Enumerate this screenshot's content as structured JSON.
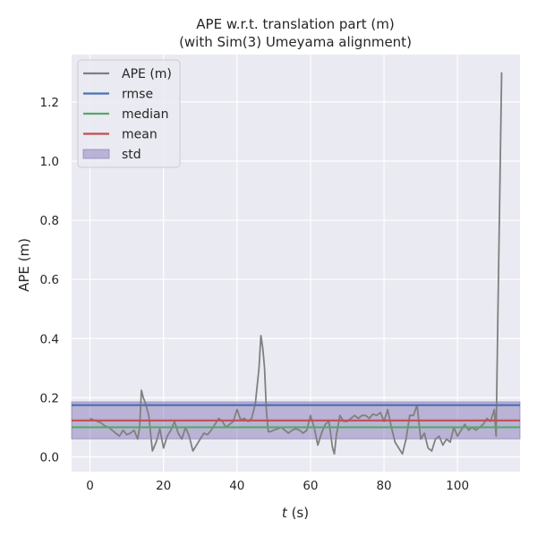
{
  "chart_data": {
    "type": "line",
    "title_line1": "APE w.r.t. translation part (m)",
    "title_line2": "(with Sim(3) Umeyama alignment)",
    "xlabel_var": "t",
    "xlabel_unit": " (s)",
    "ylabel": "APE (m)",
    "xlim": [
      -5,
      117
    ],
    "ylim": [
      -0.05,
      1.36
    ],
    "xticks": [
      0,
      20,
      40,
      60,
      80,
      100
    ],
    "yticks": [
      0.0,
      0.2,
      0.4,
      0.6,
      0.8,
      1.0,
      1.2
    ],
    "ytick_labels": [
      "0.0",
      "0.2",
      "0.4",
      "0.6",
      "0.8",
      "1.0",
      "1.2"
    ],
    "grid": true,
    "legend_position": "upper-left",
    "colors": {
      "background": "#eaeaf2",
      "grid": "#ffffff",
      "ape": "#808080",
      "rmse": "#4c72b0",
      "median": "#55a868",
      "mean": "#c44e52",
      "std": "#8172b3"
    },
    "stats": {
      "rmse": 0.175,
      "median": 0.1,
      "mean": 0.123,
      "std_lower": 0.061,
      "std_upper": 0.186
    },
    "legend": [
      {
        "label": "APE (m)",
        "kind": "line",
        "color_key": "ape"
      },
      {
        "label": "rmse",
        "kind": "line",
        "color_key": "rmse"
      },
      {
        "label": "median",
        "kind": "line",
        "color_key": "median"
      },
      {
        "label": "mean",
        "kind": "line",
        "color_key": "mean"
      },
      {
        "label": "std",
        "kind": "patch",
        "color_key": "std"
      }
    ],
    "series": [
      {
        "name": "APE (m)",
        "x": [
          0,
          1,
          2,
          3,
          4,
          5,
          6,
          7,
          8,
          9,
          10,
          11,
          12,
          13,
          13.5,
          14,
          14.5,
          15,
          16,
          17,
          18,
          19,
          20,
          21,
          22,
          23,
          24,
          25,
          26,
          27,
          28,
          29,
          30,
          31,
          32,
          33,
          34,
          35,
          36,
          37,
          38,
          39,
          40,
          41,
          42,
          43,
          44,
          45,
          46,
          46.5,
          47,
          47.5,
          48,
          48.5,
          49,
          50,
          51,
          52,
          53,
          54,
          55,
          56,
          57,
          58,
          59,
          60,
          61,
          62,
          63,
          64,
          65,
          66,
          66.5,
          67,
          68,
          69,
          70,
          71,
          72,
          73,
          74,
          75,
          76,
          77,
          78,
          79,
          80,
          81,
          82,
          83,
          84,
          85,
          86,
          87,
          88,
          89,
          90,
          91,
          92,
          93,
          94,
          95,
          96,
          97,
          98,
          99,
          100,
          101,
          102,
          103,
          104,
          105,
          106,
          107,
          108,
          109,
          110,
          110.5,
          111,
          112
        ],
        "y": [
          0.13,
          0.125,
          0.12,
          0.115,
          0.105,
          0.1,
          0.09,
          0.08,
          0.07,
          0.09,
          0.075,
          0.08,
          0.09,
          0.06,
          0.1,
          0.225,
          0.2,
          0.185,
          0.14,
          0.02,
          0.05,
          0.095,
          0.03,
          0.07,
          0.09,
          0.12,
          0.08,
          0.06,
          0.1,
          0.07,
          0.02,
          0.04,
          0.06,
          0.08,
          0.075,
          0.09,
          0.11,
          0.13,
          0.12,
          0.1,
          0.11,
          0.12,
          0.16,
          0.125,
          0.13,
          0.12,
          0.13,
          0.18,
          0.3,
          0.41,
          0.37,
          0.3,
          0.16,
          0.085,
          0.085,
          0.09,
          0.095,
          0.1,
          0.09,
          0.08,
          0.09,
          0.095,
          0.09,
          0.08,
          0.09,
          0.14,
          0.1,
          0.04,
          0.08,
          0.11,
          0.12,
          0.03,
          0.01,
          0.07,
          0.14,
          0.12,
          0.12,
          0.13,
          0.14,
          0.13,
          0.14,
          0.14,
          0.13,
          0.145,
          0.14,
          0.15,
          0.12,
          0.16,
          0.1,
          0.05,
          0.03,
          0.01,
          0.06,
          0.14,
          0.14,
          0.175,
          0.06,
          0.08,
          0.03,
          0.02,
          0.06,
          0.07,
          0.04,
          0.06,
          0.05,
          0.1,
          0.07,
          0.09,
          0.11,
          0.09,
          0.1,
          0.09,
          0.1,
          0.11,
          0.13,
          0.12,
          0.16,
          0.07,
          0.5,
          1.3
        ]
      }
    ]
  }
}
